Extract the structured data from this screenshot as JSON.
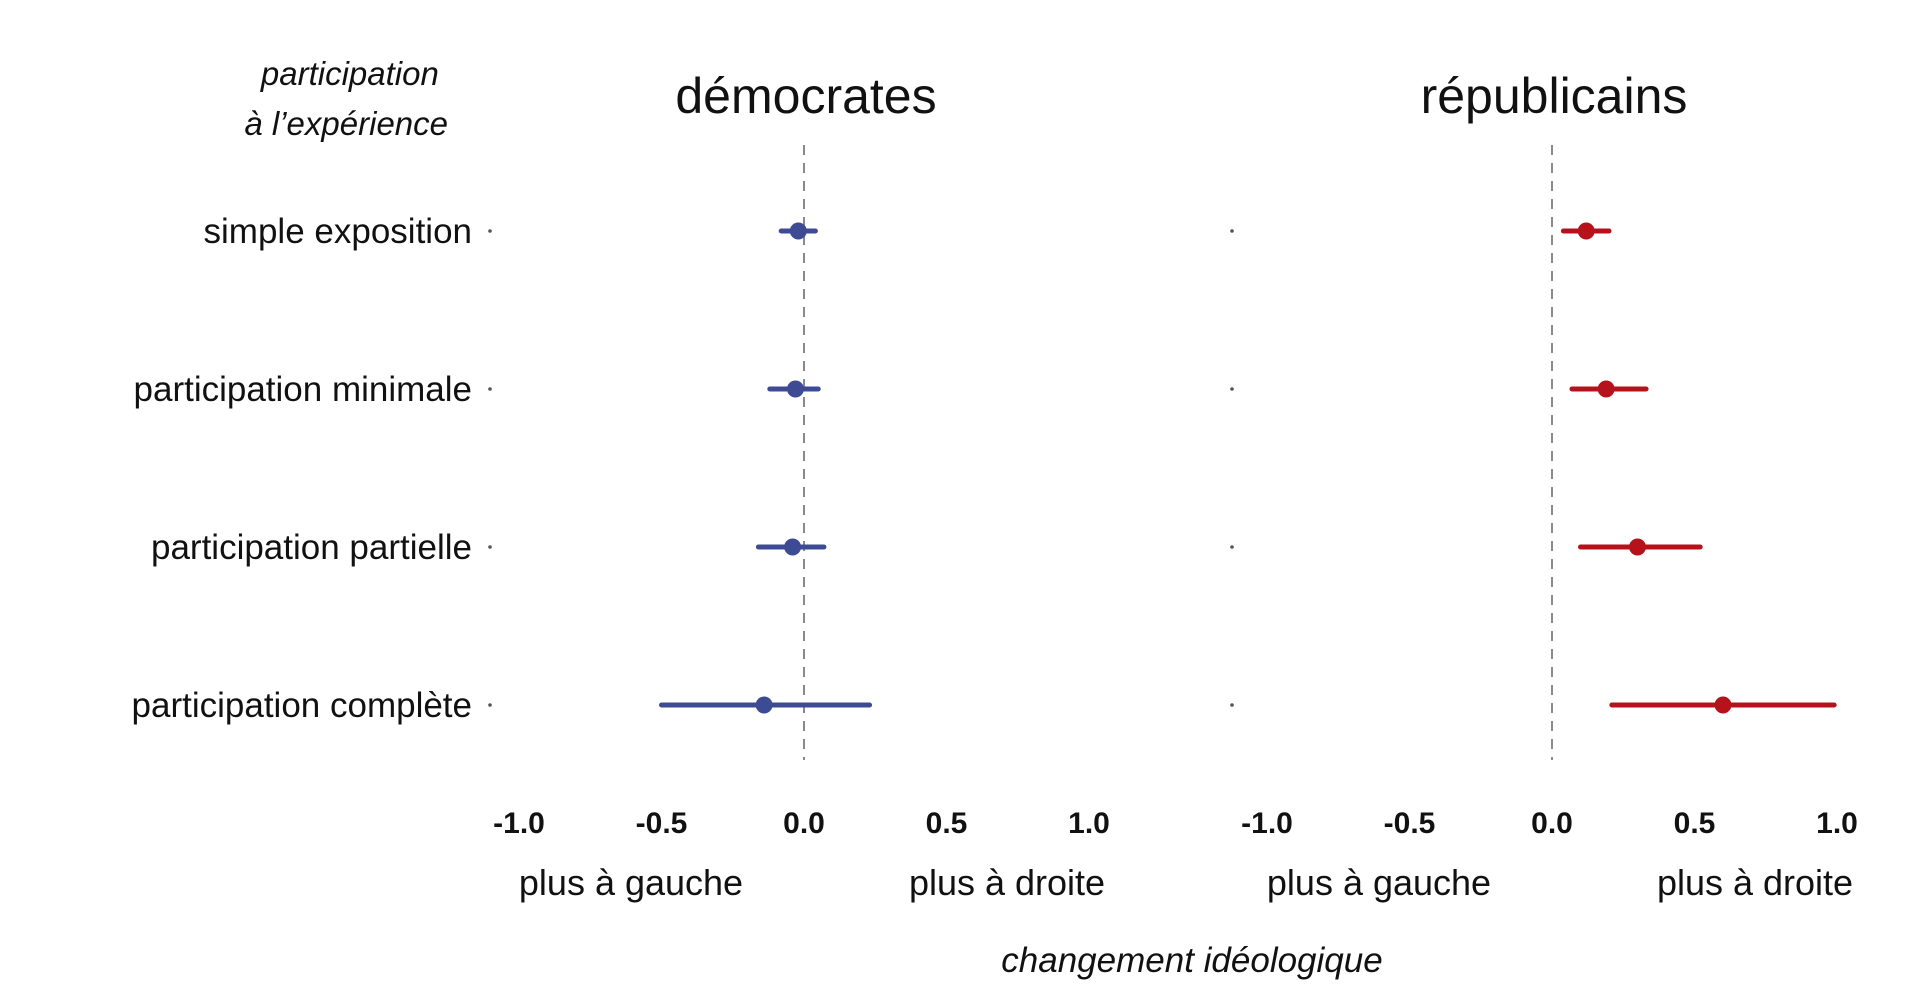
{
  "chart_data": {
    "type": "scatter",
    "row_header": "participation\nà l’expérience",
    "categories": [
      "simple exposition",
      "participation minimale",
      "participation partielle",
      "participation complète"
    ],
    "xlabel": "changement idéologique",
    "xlim": [
      -1.1,
      1.1
    ],
    "x_ticks": [
      -1.0,
      -0.5,
      0.0,
      0.5,
      1.0
    ],
    "x_tick_labels": [
      "-1.0",
      "-0.5",
      "0.0",
      "0.5",
      "1.0"
    ],
    "direction_labels": {
      "left": "plus à gauche",
      "right": "plus à droite"
    },
    "reference_line": 0,
    "panels": [
      {
        "title": "démocrates",
        "color": "#3d4a94",
        "points": [
          {
            "x": -0.02,
            "low": -0.08,
            "high": 0.04
          },
          {
            "x": -0.03,
            "low": -0.12,
            "high": 0.05
          },
          {
            "x": -0.04,
            "low": -0.16,
            "high": 0.07
          },
          {
            "x": -0.14,
            "low": -0.5,
            "high": 0.23
          }
        ]
      },
      {
        "title": "républicains",
        "color": "#b5121b",
        "points": [
          {
            "x": 0.12,
            "low": 0.04,
            "high": 0.2
          },
          {
            "x": 0.19,
            "low": 0.07,
            "high": 0.33
          },
          {
            "x": 0.3,
            "low": 0.1,
            "high": 0.52
          },
          {
            "x": 0.6,
            "low": 0.21,
            "high": 0.99
          }
        ]
      }
    ]
  }
}
